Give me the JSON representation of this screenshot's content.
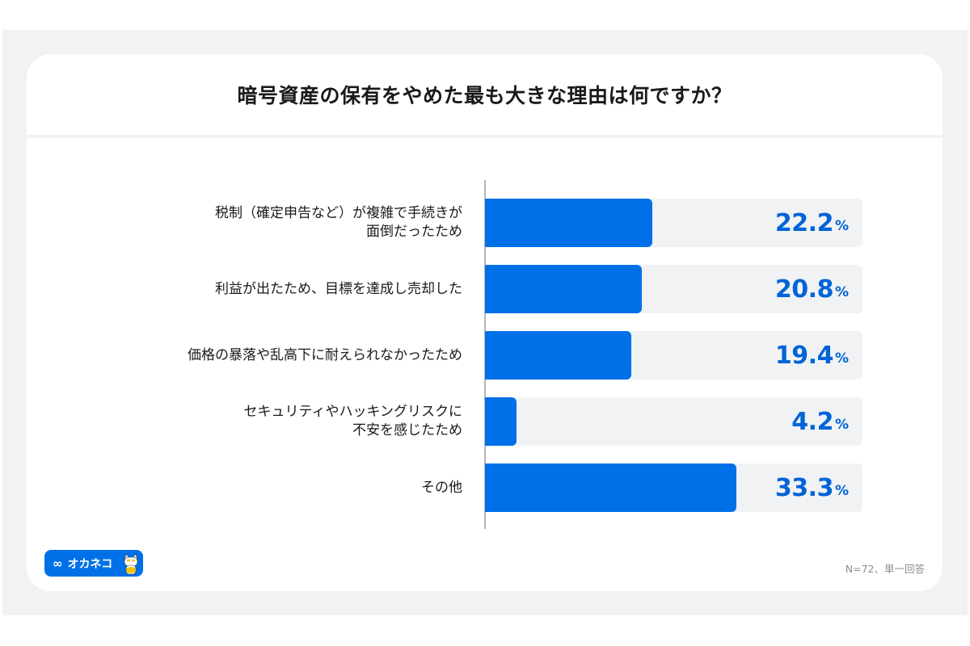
{
  "header": {
    "title": "暗号資産の保有をやめた最も大きな理由は何ですか？"
  },
  "rows": [
    {
      "label": "税制（確定申告など）が複雑で手続きが\n面倒だったため",
      "value": "22.2",
      "unit": "%"
    },
    {
      "label": "利益が出たため、目標を達成し売却した",
      "value": "20.8",
      "unit": "%"
    },
    {
      "label": "価格の暴落や乱高下に耐えられなかったため",
      "value": "19.4",
      "unit": "%"
    },
    {
      "label": "セキュリティやハッキングリスクに\n不安を感じたため",
      "value": "4.2",
      "unit": "%"
    },
    {
      "label": "その他",
      "value": "33.3",
      "unit": "%"
    }
  ],
  "footer": {
    "logo_text": "オカネコ",
    "logo_icon": "infinity-icon",
    "note": "N=72、単一回答"
  },
  "colors": {
    "bar": "#0070e8",
    "value_text": "#0064d6",
    "track": "#f1f2f4",
    "background": "#f1f2f4"
  },
  "chart_data": {
    "type": "bar",
    "orientation": "horizontal",
    "title": "暗号資産の保有をやめた最も大きな理由は何ですか？",
    "categories": [
      "税制（確定申告など）が複雑で手続きが面倒だったため",
      "利益が出たため、目標を達成し売却した",
      "価格の暴落や乱高下に耐えられなかったため",
      "セキュリティやハッキングリスクに不安を感じたため",
      "その他"
    ],
    "values": [
      22.2,
      20.8,
      19.4,
      4.2,
      33.3
    ],
    "unit": "%",
    "xlabel": "",
    "ylabel": "",
    "xlim": [
      0,
      50
    ],
    "grid": false,
    "legend": null,
    "annotations": [
      "N=72、単一回答"
    ]
  }
}
